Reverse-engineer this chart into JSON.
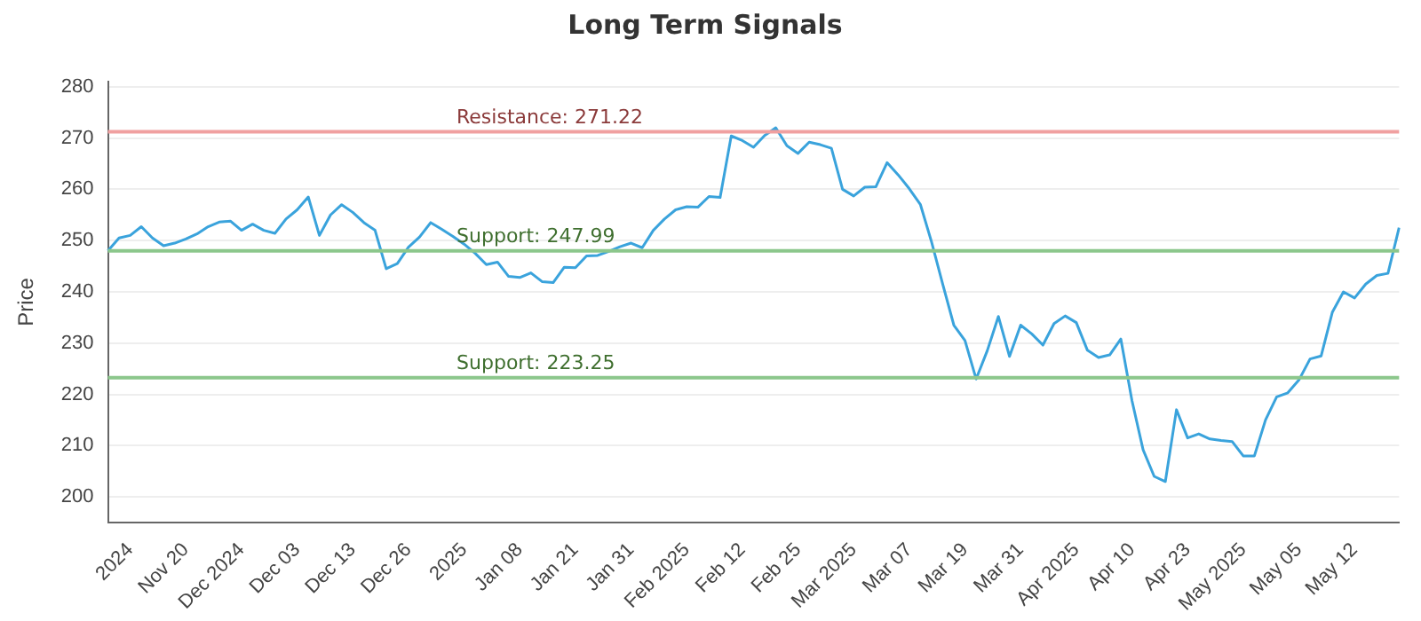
{
  "chart_data": {
    "type": "line",
    "title": "Long Term Signals",
    "ylabel": "Price",
    "categories": [
      null,
      null,
      "2024",
      null,
      null,
      null,
      null,
      "Nov 20",
      null,
      null,
      null,
      null,
      "Dec 2024",
      null,
      null,
      null,
      null,
      "Dec 03",
      null,
      null,
      null,
      null,
      "Dec 13",
      null,
      null,
      null,
      null,
      "Dec 26",
      null,
      null,
      null,
      null,
      "2025",
      null,
      null,
      null,
      null,
      "Jan 08",
      null,
      null,
      null,
      null,
      "Jan 21",
      null,
      null,
      null,
      null,
      "Jan 31",
      null,
      null,
      null,
      null,
      "Feb 2025",
      null,
      null,
      null,
      null,
      "Feb 12",
      null,
      null,
      null,
      null,
      "Feb 25",
      null,
      null,
      null,
      null,
      "Mar 2025",
      null,
      null,
      null,
      null,
      "Mar 07",
      null,
      null,
      null,
      null,
      "Mar 19",
      null,
      null,
      null,
      null,
      "Mar 31",
      null,
      null,
      null,
      null,
      "Apr 2025",
      null,
      null,
      null,
      null,
      "Apr 10",
      null,
      null,
      null,
      null,
      "Apr 23",
      null,
      null,
      null,
      null,
      "May 2025",
      null,
      null,
      null,
      null,
      "May 05",
      null,
      null,
      null,
      null,
      "May 12",
      null,
      null,
      null,
      null
    ],
    "series": [
      {
        "color": "#3aa3dc",
        "values": [
          248,
          250.5,
          251,
          252.7,
          250.5,
          249,
          249.5,
          250.3,
          251.3,
          252.7,
          253.6,
          253.8,
          252,
          253.2,
          252,
          251.4,
          254.2,
          256,
          258.5,
          251,
          255,
          257,
          255.5,
          253.5,
          252,
          244.5,
          245.5,
          248.7,
          250.7,
          253.5,
          252.2,
          250.8,
          249.3,
          247.5,
          245.3,
          245.8,
          243,
          242.8,
          243.7,
          242,
          241.8,
          244.8,
          244.7,
          247,
          247.1,
          247.9,
          248.8,
          249.5,
          248.6,
          252,
          254.2,
          256,
          256.6,
          256.5,
          258.6,
          258.4,
          270.4,
          269.5,
          268.2,
          270.5,
          272,
          268.5,
          267,
          269.2,
          268.7,
          268,
          260,
          258.7,
          260.4,
          260.5,
          265.2,
          262.8,
          260.1,
          257,
          249.7,
          241.5,
          233.5,
          230.5,
          223,
          228.5,
          235.2,
          227.4,
          233.5,
          231.8,
          229.6,
          233.8,
          235.3,
          234,
          228.6,
          227.2,
          227.7,
          230.8,
          218.8,
          209.2,
          204,
          203,
          217,
          211.5,
          212.3,
          211.3,
          211,
          210.8,
          208,
          208,
          215,
          219.5,
          220.3,
          222.8,
          226.9,
          227.5,
          236,
          240,
          238.8,
          241.5,
          243.2,
          243.6,
          252.5
        ]
      }
    ],
    "ylim": [
      195,
      281
    ],
    "yticks": [
      200,
      210,
      220,
      230,
      240,
      250,
      260,
      270,
      280
    ],
    "grid": "y",
    "legend": false,
    "marker": "none",
    "line_style": "solid",
    "ref_lines": [
      {
        "axis": "y",
        "value": 271.22,
        "label": "Resistance: 271.22",
        "color": "#f0a0a0"
      },
      {
        "axis": "y",
        "value": 247.99,
        "label": "Support: 247.99",
        "color": "#8cc78c"
      },
      {
        "axis": "y",
        "value": 223.25,
        "label": "Support: 223.25",
        "color": "#8cc78c"
      }
    ]
  }
}
